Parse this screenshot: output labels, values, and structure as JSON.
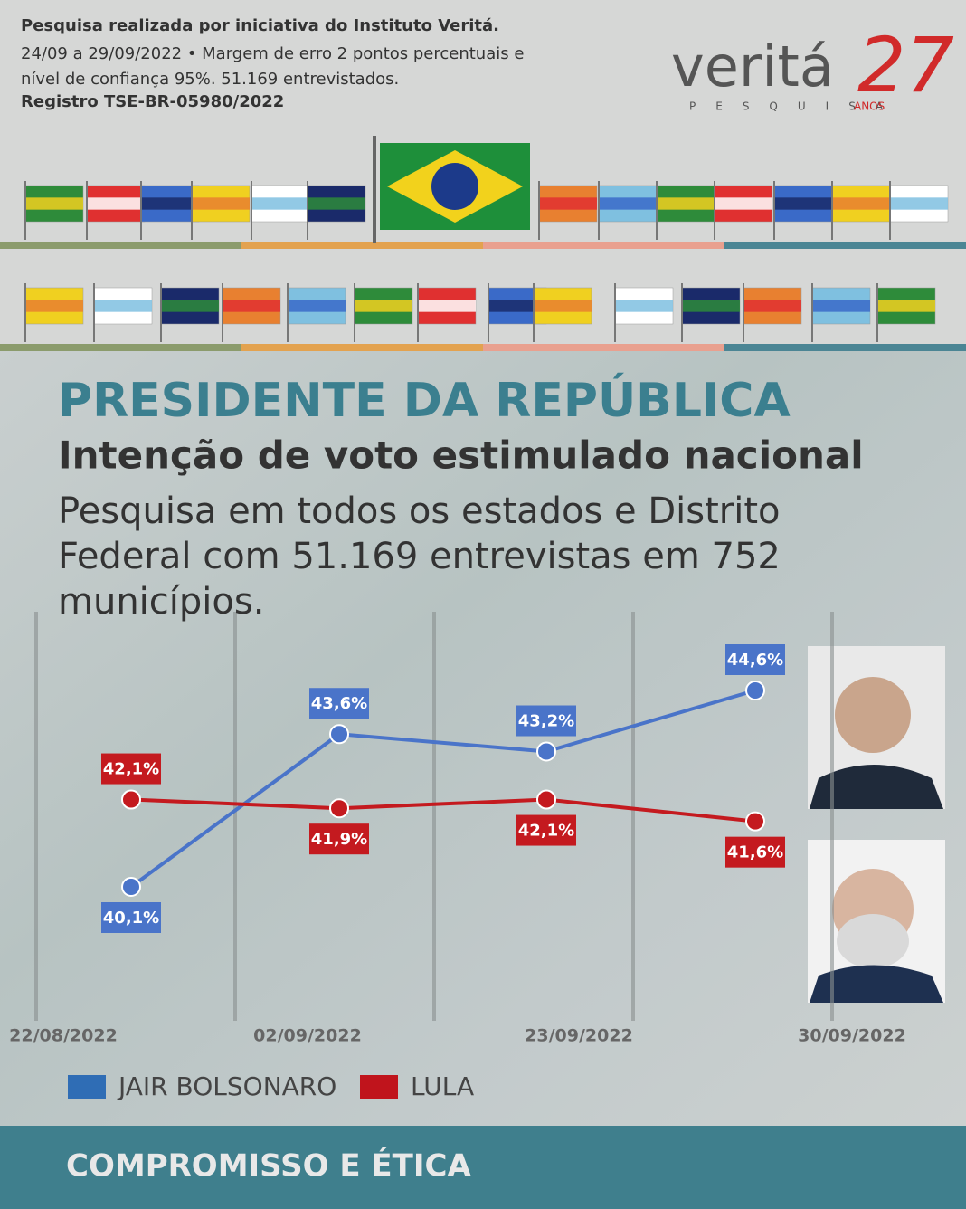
{
  "header": {
    "line1": "Pesquisa realizada por iniciativa do Instituto Veritá.",
    "line2": "24/09 a 29/09/2022 • Margem de erro 2 pontos percentuais e nível de confiança 95%. 51.169 entrevistados.",
    "line3": "Registro TSE-BR-05980/2022"
  },
  "logo": {
    "name": "veritá",
    "tagline": "PESQUISA",
    "years": "27",
    "years_label": "ANOS"
  },
  "chart_data": {
    "type": "line",
    "title": "PRESIDENTE DA REPÚBLICA",
    "subtitle": "Intenção de voto estimulado nacional",
    "note": "Pesquisa em todos os estados e Distrito Federal com 51.169 entrevistas em 752 municípios.",
    "categories": [
      "22/08/2022",
      "02/09/2022",
      "23/09/2022",
      "30/09/2022"
    ],
    "series": [
      {
        "name": "JAIR BOLSONARO",
        "color": "#4a74c9",
        "legend_color": "#2f6db5",
        "values": [
          40.1,
          43.6,
          43.2,
          44.6
        ],
        "value_labels": [
          "40,1%",
          "43,6%",
          "43,2%",
          "44,6%"
        ]
      },
      {
        "name": "LULA",
        "color": "#c41a1f",
        "legend_color": "#c0141c",
        "values": [
          42.1,
          41.9,
          42.1,
          41.6
        ],
        "value_labels": [
          "42,1%",
          "41,9%",
          "42,1%",
          "41,6%"
        ]
      }
    ]
  },
  "footer": {
    "text": "COMPROMISSO E ÉTICA"
  }
}
